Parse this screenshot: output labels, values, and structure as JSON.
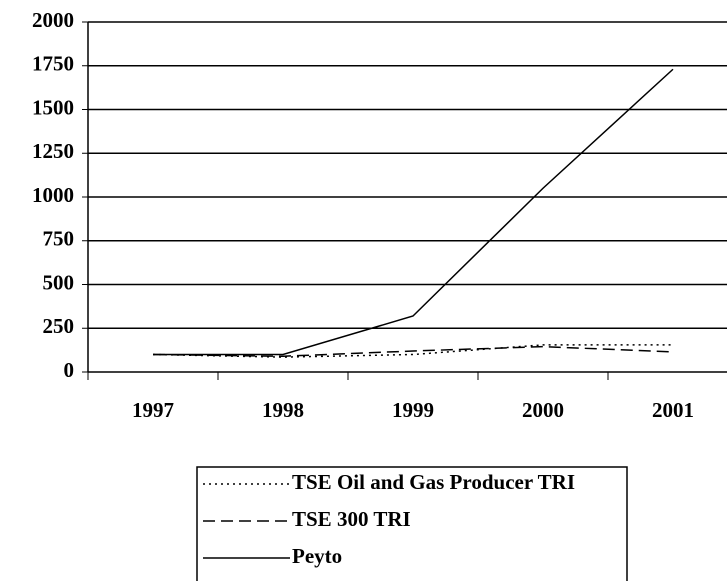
{
  "chart_data": {
    "type": "line",
    "categories": [
      "1997",
      "1998",
      "1999",
      "2000",
      "2001"
    ],
    "series": [
      {
        "name": "TSE Oil and Gas Producer TRI",
        "color": "#000000",
        "dash": "dotted",
        "values": [
          100,
          85,
          100,
          155,
          155
        ]
      },
      {
        "name": "TSE 300 TRI",
        "color": "#000000",
        "dash": "dashed",
        "values": [
          100,
          90,
          120,
          145,
          115
        ]
      },
      {
        "name": "Peyto",
        "color": "#000000",
        "dash": "solid",
        "values": [
          100,
          100,
          320,
          1050,
          1730
        ]
      }
    ],
    "ylim": [
      0,
      2000
    ],
    "yticks": [
      0,
      250,
      500,
      750,
      1000,
      1250,
      1500,
      1750,
      2000
    ],
    "grid": true,
    "legend": "bottom"
  }
}
